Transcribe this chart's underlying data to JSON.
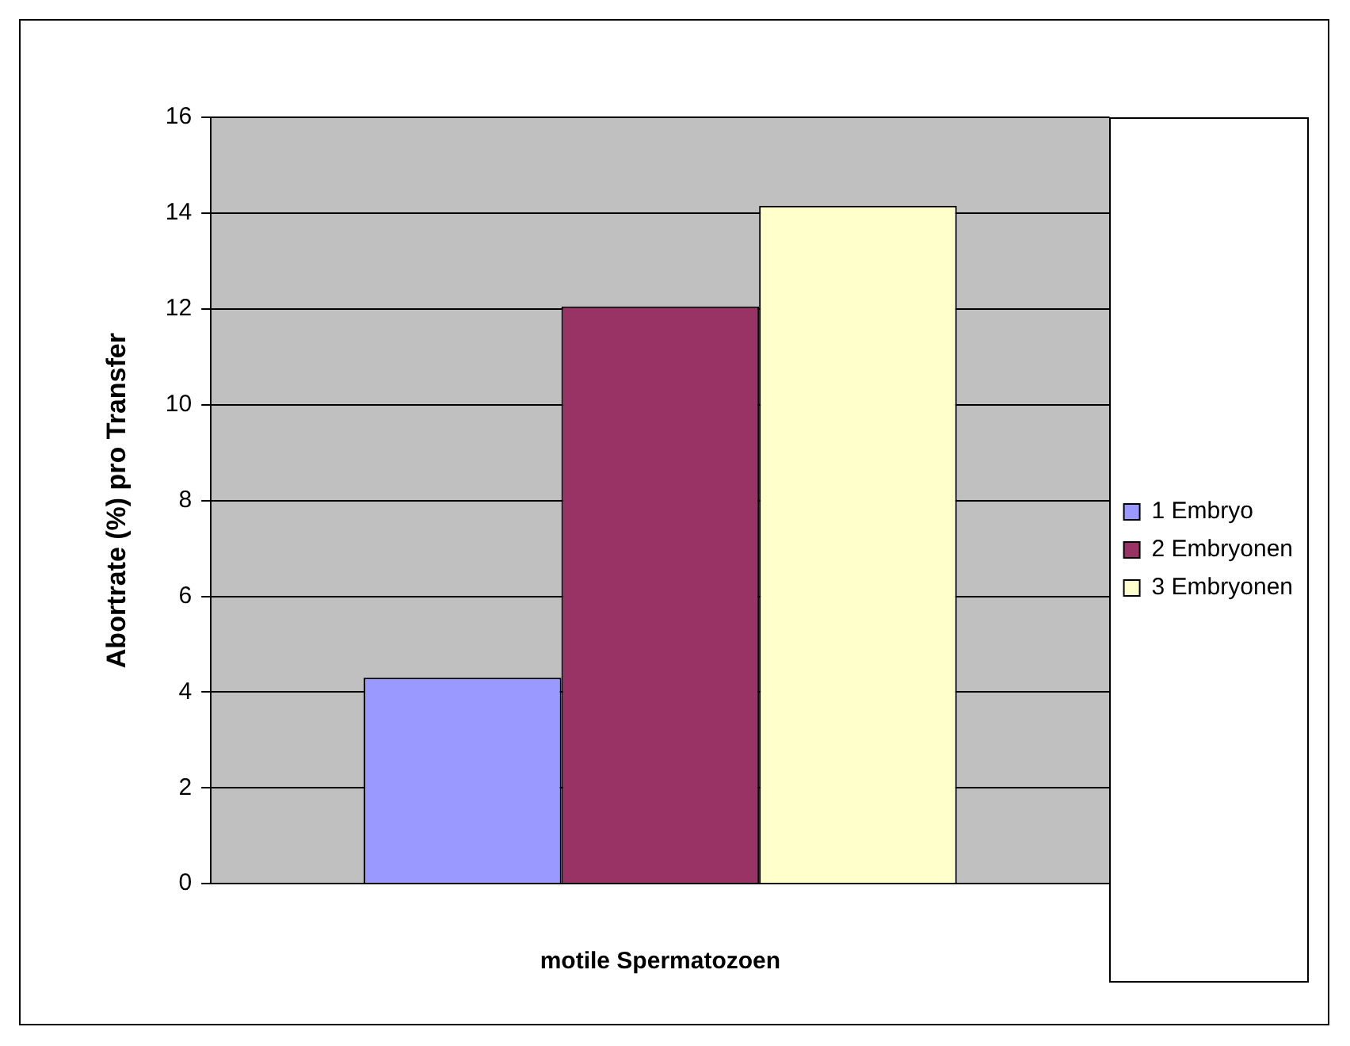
{
  "chart_data": {
    "type": "bar",
    "categories": [
      null
    ],
    "xlabel": "motile Spermatozoen",
    "ylabel": "Abortrate (%) pro Transfer",
    "series": [
      {
        "name": "1 Embryo",
        "color": "#9999ff",
        "values": [
          4.3
        ]
      },
      {
        "name": "2 Embryonen",
        "color": "#993366",
        "values": [
          12.05
        ]
      },
      {
        "name": "3 Embryonen",
        "color": "#ffffcc",
        "values": [
          14.15
        ]
      }
    ],
    "ylim": [
      0,
      16
    ],
    "yticks": [
      0,
      2,
      4,
      6,
      8,
      10,
      12,
      14,
      16
    ],
    "grid": "y",
    "legend": "right"
  }
}
